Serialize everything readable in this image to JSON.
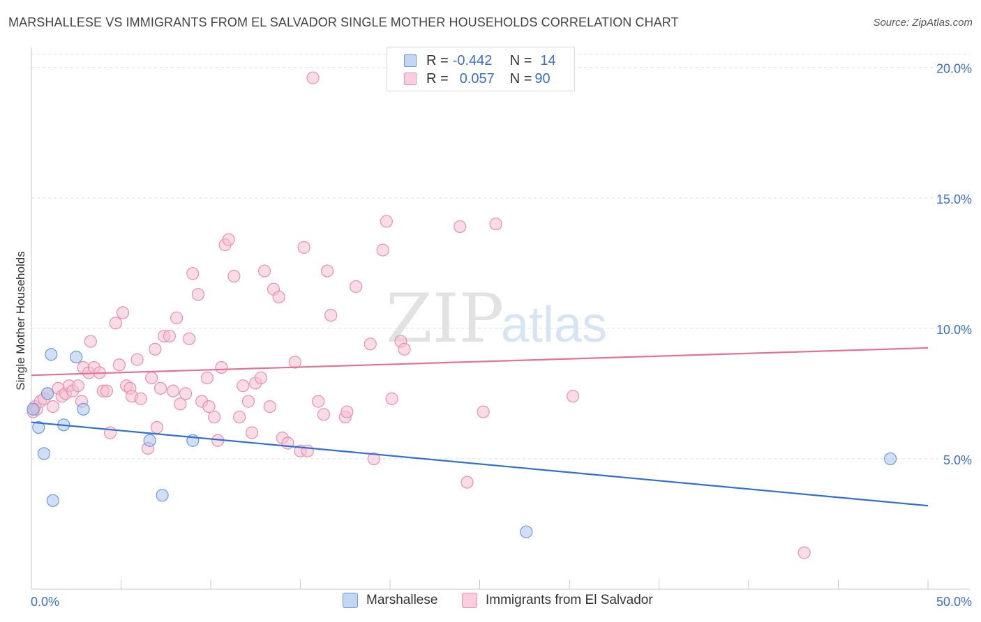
{
  "title": "MARSHALLESE VS IMMIGRANTS FROM EL SALVADOR SINGLE MOTHER HOUSEHOLDS CORRELATION CHART",
  "source": "Source: ZipAtlas.com",
  "watermark": {
    "zip": "ZIP",
    "atlas": "atlas"
  },
  "legend": [
    {
      "r_label": "R =",
      "r_value": "-0.442",
      "n_label": "N =",
      "n_value": "14"
    },
    {
      "r_label": "R =",
      "r_value": "0.057",
      "n_label": "N =",
      "n_value": "90"
    }
  ],
  "colors": {
    "blue_fill": "#a9c5ee",
    "blue_stroke": "#6a9ae0",
    "blue_line": "#2f6fd0",
    "pink_fill": "#f6c0d2",
    "pink_stroke": "#e890ad",
    "pink_line": "#e3729a",
    "tick_label": "#3b6fc6",
    "grid": "#dedede"
  },
  "chart_data": {
    "type": "scatter",
    "title": "MARSHALLESE VS IMMIGRANTS FROM EL SALVADOR SINGLE MOTHER HOUSEHOLDS CORRELATION CHART",
    "xlabel": "",
    "ylabel": "Single Mother Households",
    "xlim": [
      0,
      50
    ],
    "ylim": [
      0,
      20.5
    ],
    "x_tick_labels": [
      "0.0%",
      "50.0%"
    ],
    "y_ticks": [
      5,
      10,
      15,
      20
    ],
    "y_tick_labels": [
      "5.0%",
      "10.0%",
      "15.0%",
      "20.0%"
    ],
    "legend_position": "bottom-center",
    "series": [
      {
        "name": "Marshallese",
        "color": "blue",
        "trend": {
          "x": [
            0,
            50
          ],
          "y": [
            6.4,
            3.2
          ]
        },
        "points": [
          [
            0.1,
            6.9
          ],
          [
            0.4,
            6.2
          ],
          [
            0.7,
            5.2
          ],
          [
            0.9,
            7.5
          ],
          [
            1.1,
            9.0
          ],
          [
            1.2,
            3.4
          ],
          [
            1.8,
            6.3
          ],
          [
            2.5,
            8.9
          ],
          [
            2.9,
            6.9
          ],
          [
            6.6,
            5.7
          ],
          [
            7.3,
            3.6
          ],
          [
            9.0,
            5.7
          ],
          [
            27.6,
            2.2
          ],
          [
            47.9,
            5.0
          ]
        ]
      },
      {
        "name": "Immigrants from El Salvador",
        "color": "pink",
        "trend": {
          "x": [
            0,
            50
          ],
          "y": [
            8.2,
            9.25
          ]
        },
        "points": [
          [
            0.1,
            6.8
          ],
          [
            0.2,
            7.0
          ],
          [
            0.3,
            6.9
          ],
          [
            0.5,
            7.2
          ],
          [
            0.7,
            7.3
          ],
          [
            0.9,
            7.5
          ],
          [
            1.2,
            7.0
          ],
          [
            1.5,
            7.7
          ],
          [
            1.7,
            7.4
          ],
          [
            1.9,
            7.5
          ],
          [
            2.1,
            7.8
          ],
          [
            2.3,
            7.6
          ],
          [
            2.6,
            7.8
          ],
          [
            2.8,
            7.2
          ],
          [
            2.9,
            8.5
          ],
          [
            3.2,
            8.3
          ],
          [
            3.3,
            9.5
          ],
          [
            3.5,
            8.5
          ],
          [
            3.8,
            8.3
          ],
          [
            4.0,
            7.6
          ],
          [
            4.2,
            7.6
          ],
          [
            4.4,
            6.0
          ],
          [
            4.7,
            10.2
          ],
          [
            4.9,
            8.6
          ],
          [
            5.1,
            10.6
          ],
          [
            5.3,
            7.8
          ],
          [
            5.5,
            7.7
          ],
          [
            5.6,
            7.4
          ],
          [
            5.9,
            8.8
          ],
          [
            6.1,
            7.3
          ],
          [
            6.5,
            5.4
          ],
          [
            6.7,
            8.1
          ],
          [
            6.9,
            9.2
          ],
          [
            7.0,
            6.2
          ],
          [
            7.2,
            7.7
          ],
          [
            7.4,
            9.7
          ],
          [
            7.7,
            9.7
          ],
          [
            7.9,
            7.6
          ],
          [
            8.1,
            10.4
          ],
          [
            8.3,
            7.1
          ],
          [
            8.6,
            7.5
          ],
          [
            8.8,
            9.6
          ],
          [
            9.0,
            12.1
          ],
          [
            9.3,
            11.3
          ],
          [
            9.5,
            7.2
          ],
          [
            9.8,
            8.1
          ],
          [
            9.9,
            7.0
          ],
          [
            10.2,
            6.6
          ],
          [
            10.4,
            5.7
          ],
          [
            10.6,
            8.5
          ],
          [
            10.8,
            13.2
          ],
          [
            11.0,
            13.4
          ],
          [
            11.3,
            12.0
          ],
          [
            11.6,
            6.6
          ],
          [
            11.8,
            7.8
          ],
          [
            12.1,
            7.2
          ],
          [
            12.3,
            6.0
          ],
          [
            12.5,
            7.9
          ],
          [
            12.8,
            8.1
          ],
          [
            13.0,
            12.2
          ],
          [
            13.3,
            7.0
          ],
          [
            13.5,
            11.5
          ],
          [
            13.8,
            11.2
          ],
          [
            14.0,
            5.8
          ],
          [
            14.3,
            5.6
          ],
          [
            14.7,
            8.7
          ],
          [
            15.0,
            5.3
          ],
          [
            15.2,
            13.1
          ],
          [
            15.4,
            5.3
          ],
          [
            15.7,
            19.6
          ],
          [
            16.0,
            7.2
          ],
          [
            16.3,
            6.7
          ],
          [
            16.5,
            12.2
          ],
          [
            16.7,
            10.5
          ],
          [
            17.5,
            6.6
          ],
          [
            17.6,
            6.8
          ],
          [
            18.1,
            11.6
          ],
          [
            18.9,
            9.4
          ],
          [
            19.1,
            5.0
          ],
          [
            19.6,
            13.0
          ],
          [
            19.8,
            14.1
          ],
          [
            20.1,
            7.3
          ],
          [
            20.6,
            9.5
          ],
          [
            20.8,
            9.2
          ],
          [
            23.9,
            13.9
          ],
          [
            24.3,
            4.1
          ],
          [
            25.2,
            6.8
          ],
          [
            25.9,
            14.0
          ],
          [
            30.2,
            7.4
          ],
          [
            43.1,
            1.4
          ]
        ]
      }
    ]
  }
}
